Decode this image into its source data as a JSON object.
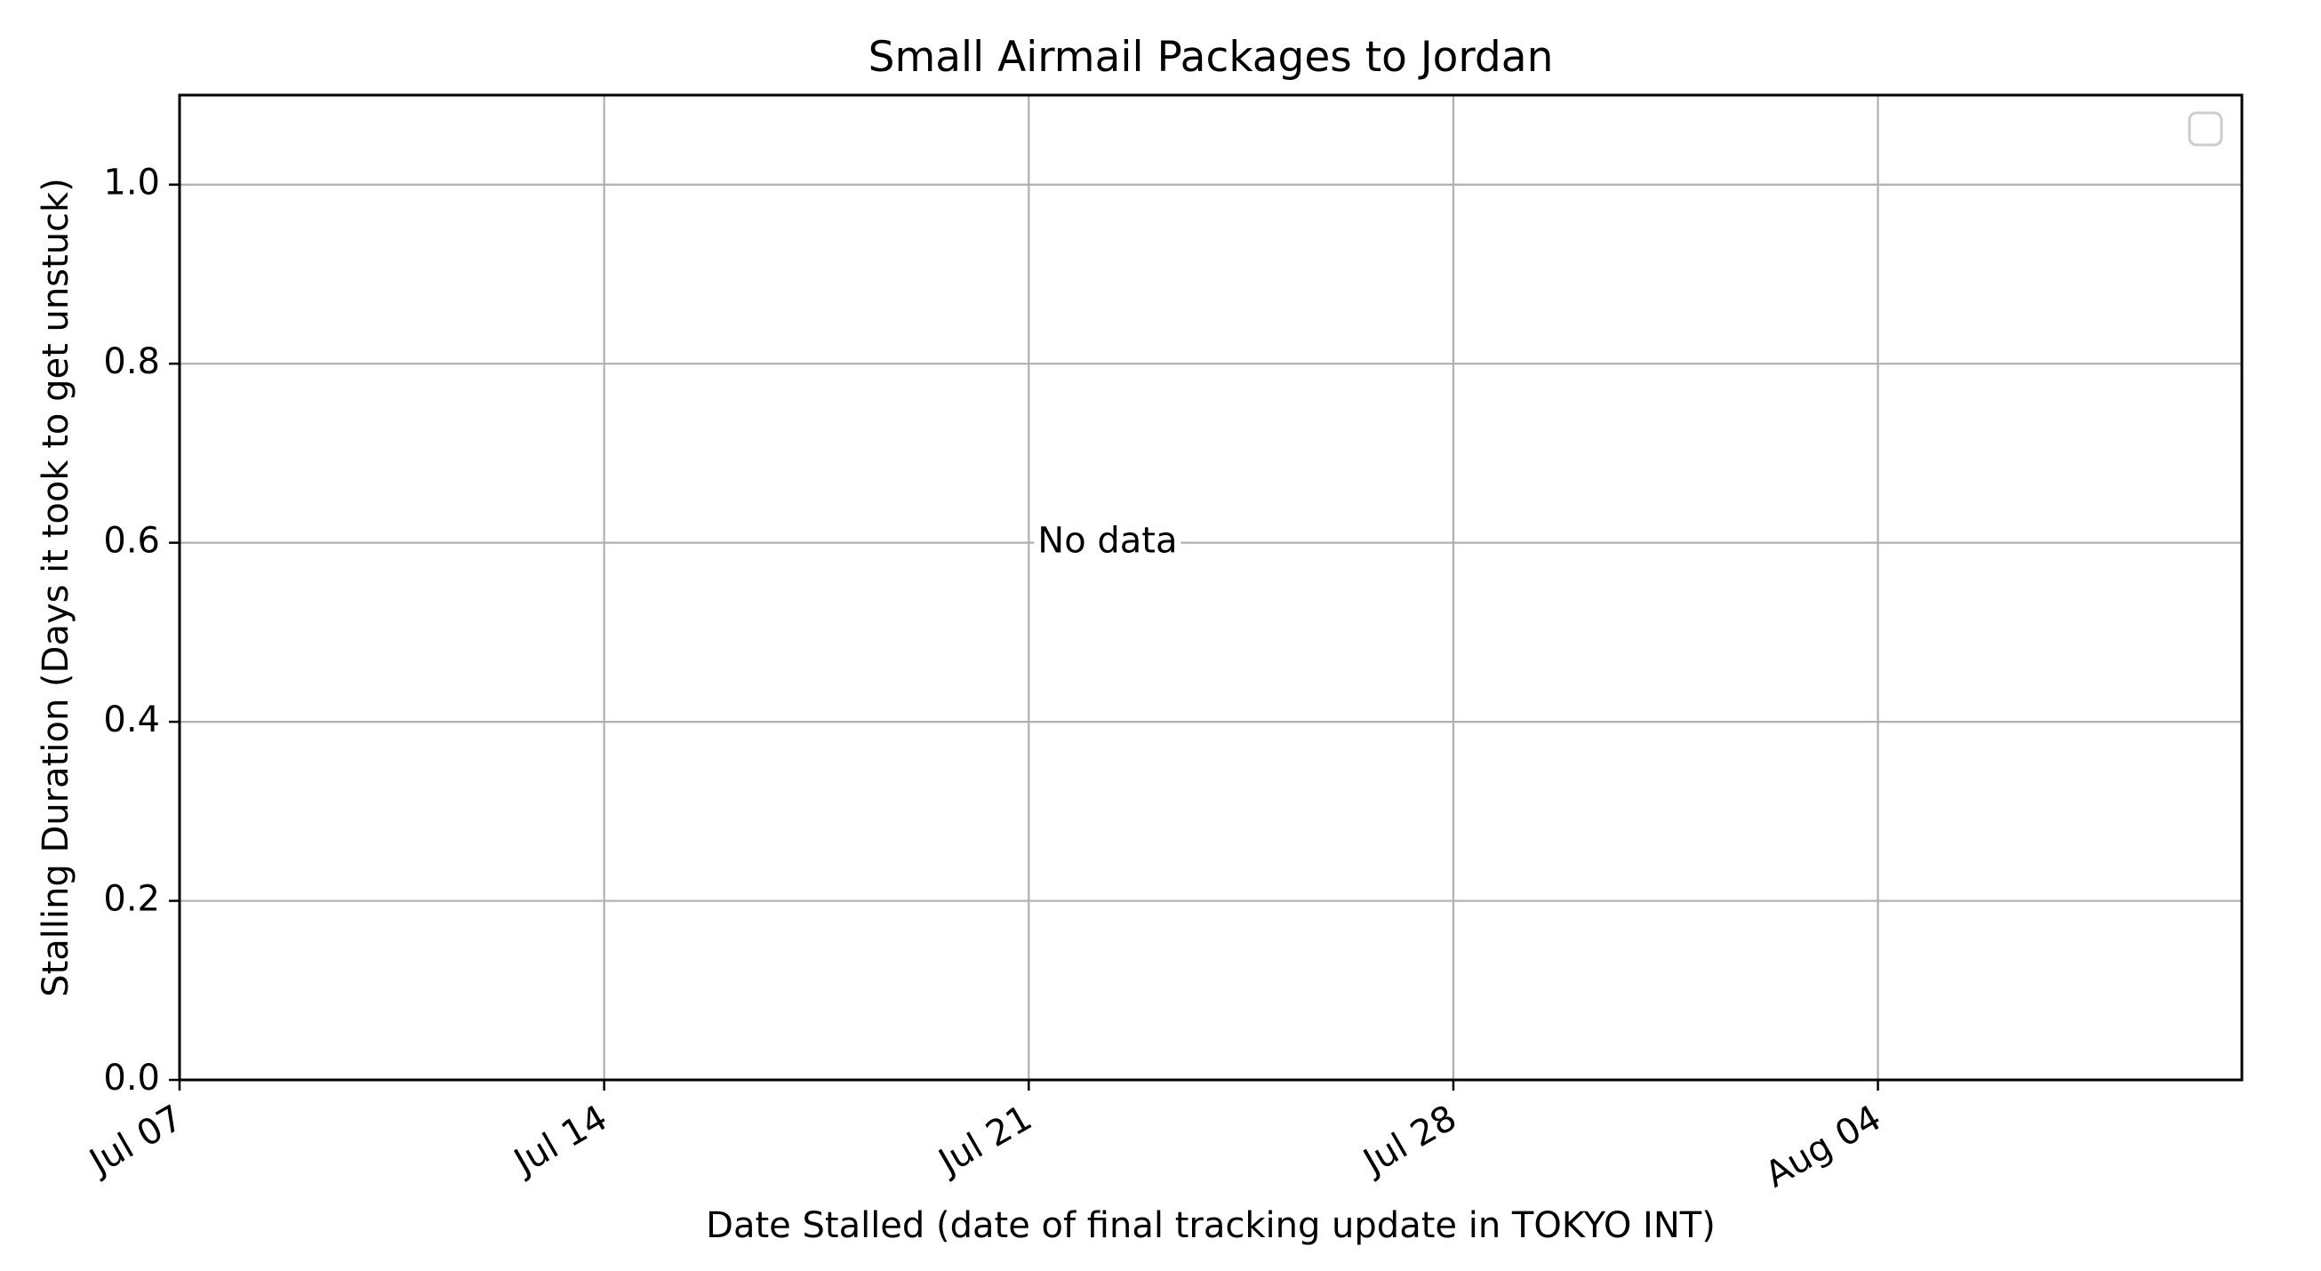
{
  "chart_data": {
    "type": "line",
    "title": "Small Airmail Packages to Jordan",
    "xlabel": "Date Stalled (date of final tracking update in TOKYO INT)",
    "ylabel": "Stalling Duration (Days it took to get unstuck)",
    "x_axis_type": "date",
    "xlim": [
      "2024-07-07",
      "2024-08-10"
    ],
    "ylim": [
      0,
      1.1
    ],
    "x_ticks": [
      {
        "date": "2024-07-07",
        "label": "Jul 07"
      },
      {
        "date": "2024-07-14",
        "label": "Jul 14"
      },
      {
        "date": "2024-07-21",
        "label": "Jul 21"
      },
      {
        "date": "2024-07-28",
        "label": "Jul 28"
      },
      {
        "date": "2024-08-04",
        "label": "Aug 04"
      }
    ],
    "y_ticks": [
      {
        "value": 0.0,
        "label": "0.0"
      },
      {
        "value": 0.2,
        "label": "0.2"
      },
      {
        "value": 0.4,
        "label": "0.4"
      },
      {
        "value": 0.6,
        "label": "0.6"
      },
      {
        "value": 0.8,
        "label": "0.8"
      },
      {
        "value": 1.0,
        "label": "1.0"
      }
    ],
    "series": [],
    "grid": true,
    "legend": {
      "position": "top-right",
      "entries": []
    },
    "annotation": {
      "text": "No data",
      "x": "2024-07-21",
      "y": 0.6
    }
  },
  "colors": {
    "grid": "#b0b0b0",
    "axes": "#000000",
    "text": "#000000",
    "legend_border": "#cccccc",
    "background": "#ffffff"
  }
}
